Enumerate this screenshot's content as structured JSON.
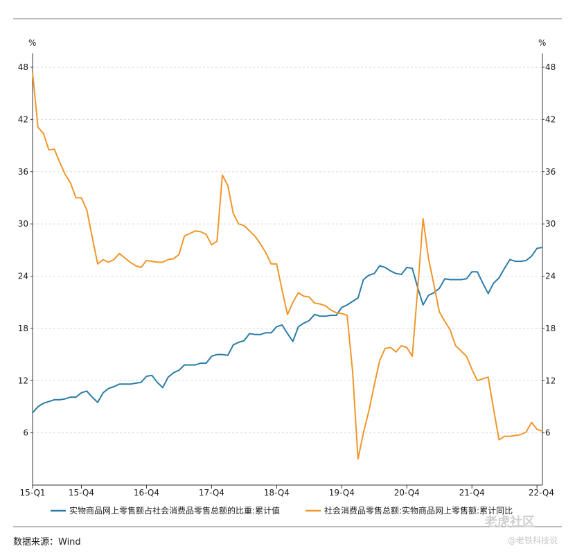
{
  "chart_data": {
    "type": "line",
    "left_unit": "%",
    "right_unit": "%",
    "x_tick_labels": [
      "15-Q1",
      "15-Q4",
      "16-Q4",
      "17-Q4",
      "18-Q4",
      "19-Q4",
      "20-Q4",
      "21-Q4",
      "22-Q4"
    ],
    "x_tick_months": [
      0,
      9,
      21,
      33,
      45,
      57,
      69,
      81,
      93
    ],
    "ylim": [
      0,
      48
    ],
    "y_ticks": [
      6,
      12,
      18,
      24,
      30,
      36,
      42,
      48
    ],
    "x_range_months": [
      0,
      94
    ],
    "grid": true,
    "legend_position": "bottom",
    "colors": {
      "share": "#2a7ba6",
      "yoy": "#f0962a",
      "grid": "#d8d8d8"
    },
    "series": [
      {
        "name": "实物商品网上零售额占社会消费品零售总额的比重:累计值",
        "color": "#2a7ba6",
        "points": [
          [
            0,
            8.3
          ],
          [
            1,
            9.0
          ],
          [
            2,
            9.4
          ],
          [
            3,
            9.6
          ],
          [
            4,
            9.8
          ],
          [
            5,
            9.8
          ],
          [
            6,
            9.9
          ],
          [
            7,
            10.1
          ],
          [
            8,
            10.1
          ],
          [
            9,
            10.6
          ],
          [
            10,
            10.8
          ],
          [
            11,
            10.1
          ],
          [
            12,
            9.5
          ],
          [
            13,
            10.6
          ],
          [
            14,
            11.1
          ],
          [
            15,
            11.3
          ],
          [
            16,
            11.6
          ],
          [
            17,
            11.6
          ],
          [
            18,
            11.6
          ],
          [
            19,
            11.7
          ],
          [
            20,
            11.8
          ],
          [
            21,
            12.5
          ],
          [
            22,
            12.6
          ],
          [
            23,
            11.8
          ],
          [
            24,
            11.2
          ],
          [
            25,
            12.4
          ],
          [
            26,
            12.9
          ],
          [
            27,
            13.2
          ],
          [
            28,
            13.8
          ],
          [
            29,
            13.8
          ],
          [
            30,
            13.8
          ],
          [
            31,
            14.0
          ],
          [
            32,
            14.0
          ],
          [
            33,
            14.8
          ],
          [
            34,
            15.0
          ],
          [
            35,
            15.0
          ],
          [
            36,
            14.9
          ],
          [
            37,
            16.1
          ],
          [
            38,
            16.4
          ],
          [
            39,
            16.6
          ],
          [
            40,
            17.4
          ],
          [
            41,
            17.3
          ],
          [
            42,
            17.3
          ],
          [
            43,
            17.5
          ],
          [
            44,
            17.5
          ],
          [
            45,
            18.2
          ],
          [
            46,
            18.4
          ],
          [
            47,
            17.4
          ],
          [
            48,
            16.5
          ],
          [
            49,
            18.2
          ],
          [
            50,
            18.6
          ],
          [
            51,
            18.9
          ],
          [
            52,
            19.6
          ],
          [
            53,
            19.4
          ],
          [
            54,
            19.4
          ],
          [
            55,
            19.5
          ],
          [
            56,
            19.5
          ],
          [
            57,
            20.4
          ],
          [
            58,
            20.7
          ],
          [
            59,
            21.1
          ],
          [
            60,
            21.5
          ],
          [
            61,
            23.6
          ],
          [
            62,
            24.1
          ],
          [
            63,
            24.3
          ],
          [
            64,
            25.2
          ],
          [
            65,
            25.0
          ],
          [
            66,
            24.6
          ],
          [
            67,
            24.3
          ],
          [
            68,
            24.2
          ],
          [
            69,
            25.0
          ],
          [
            70,
            24.9
          ],
          [
            71,
            22.7
          ],
          [
            72,
            20.7
          ],
          [
            73,
            21.8
          ],
          [
            74,
            22.1
          ],
          [
            75,
            22.6
          ],
          [
            76,
            23.7
          ],
          [
            77,
            23.6
          ],
          [
            78,
            23.6
          ],
          [
            79,
            23.6
          ],
          [
            80,
            23.7
          ],
          [
            81,
            24.5
          ],
          [
            82,
            24.5
          ],
          [
            83,
            23.2
          ],
          [
            84,
            22.0
          ],
          [
            85,
            23.2
          ],
          [
            86,
            23.8
          ],
          [
            87,
            24.9
          ],
          [
            88,
            25.9
          ],
          [
            89,
            25.7
          ],
          [
            90,
            25.7
          ],
          [
            91,
            25.8
          ],
          [
            92,
            26.3
          ],
          [
            93,
            27.2
          ],
          [
            94,
            27.3
          ]
        ]
      },
      {
        "name": "社会消费品零售总额:实物商品网上零售额:累计同比",
        "color": "#f0962a",
        "points": [
          [
            0,
            47.4
          ],
          [
            1,
            41.1
          ],
          [
            2,
            40.4
          ],
          [
            3,
            38.5
          ],
          [
            4,
            38.6
          ],
          [
            5,
            37.1
          ],
          [
            6,
            35.7
          ],
          [
            7,
            34.7
          ],
          [
            8,
            33.0
          ],
          [
            9,
            33.0
          ],
          [
            10,
            31.6
          ],
          [
            11,
            28.5
          ],
          [
            12,
            25.4
          ],
          [
            13,
            25.9
          ],
          [
            14,
            25.6
          ],
          [
            15,
            25.9
          ],
          [
            16,
            26.6
          ],
          [
            17,
            26.1
          ],
          [
            18,
            25.6
          ],
          [
            19,
            25.2
          ],
          [
            20,
            25.0
          ],
          [
            21,
            25.8
          ],
          [
            22,
            25.7
          ],
          [
            23,
            25.6
          ],
          [
            24,
            25.6
          ],
          [
            25,
            25.9
          ],
          [
            26,
            26.0
          ],
          [
            27,
            26.5
          ],
          [
            28,
            28.6
          ],
          [
            29,
            28.9
          ],
          [
            30,
            29.2
          ],
          [
            31,
            29.1
          ],
          [
            32,
            28.8
          ],
          [
            33,
            27.6
          ],
          [
            34,
            28.0
          ],
          [
            35,
            35.6
          ],
          [
            36,
            34.4
          ],
          [
            37,
            31.2
          ],
          [
            38,
            30.0
          ],
          [
            39,
            29.8
          ],
          [
            40,
            29.2
          ],
          [
            41,
            28.6
          ],
          [
            42,
            27.7
          ],
          [
            43,
            26.7
          ],
          [
            44,
            25.4
          ],
          [
            45,
            25.4
          ],
          [
            46,
            22.4
          ],
          [
            47,
            19.6
          ],
          [
            48,
            21.0
          ],
          [
            49,
            22.1
          ],
          [
            50,
            21.7
          ],
          [
            51,
            21.6
          ],
          [
            52,
            20.9
          ],
          [
            53,
            20.8
          ],
          [
            54,
            20.6
          ],
          [
            55,
            20.1
          ],
          [
            56,
            19.8
          ],
          [
            57,
            19.7
          ],
          [
            58,
            19.5
          ],
          [
            59,
            13.0
          ],
          [
            60,
            3.0
          ],
          [
            61,
            6.0
          ],
          [
            62,
            8.5
          ],
          [
            63,
            11.5
          ],
          [
            64,
            14.3
          ],
          [
            65,
            15.7
          ],
          [
            66,
            15.8
          ],
          [
            67,
            15.3
          ],
          [
            68,
            16.0
          ],
          [
            69,
            15.8
          ],
          [
            70,
            14.8
          ],
          [
            71,
            22.5
          ],
          [
            72,
            30.6
          ],
          [
            73,
            26.0
          ],
          [
            74,
            23.0
          ],
          [
            75,
            19.9
          ],
          [
            76,
            18.8
          ],
          [
            77,
            17.8
          ],
          [
            78,
            16.0
          ],
          [
            79,
            15.4
          ],
          [
            80,
            14.8
          ],
          [
            81,
            13.3
          ],
          [
            82,
            12.0
          ],
          [
            83,
            12.2
          ],
          [
            84,
            12.4
          ],
          [
            85,
            8.7
          ],
          [
            86,
            5.2
          ],
          [
            87,
            5.6
          ],
          [
            88,
            5.6
          ],
          [
            89,
            5.7
          ],
          [
            90,
            5.8
          ],
          [
            91,
            6.1
          ],
          [
            92,
            7.2
          ],
          [
            93,
            6.4
          ],
          [
            94,
            6.2
          ]
        ]
      }
    ]
  },
  "footer": {
    "source": "数据来源：Wind",
    "watermark_main": "老虎社区",
    "watermark_sub": "@老铁科技说"
  }
}
